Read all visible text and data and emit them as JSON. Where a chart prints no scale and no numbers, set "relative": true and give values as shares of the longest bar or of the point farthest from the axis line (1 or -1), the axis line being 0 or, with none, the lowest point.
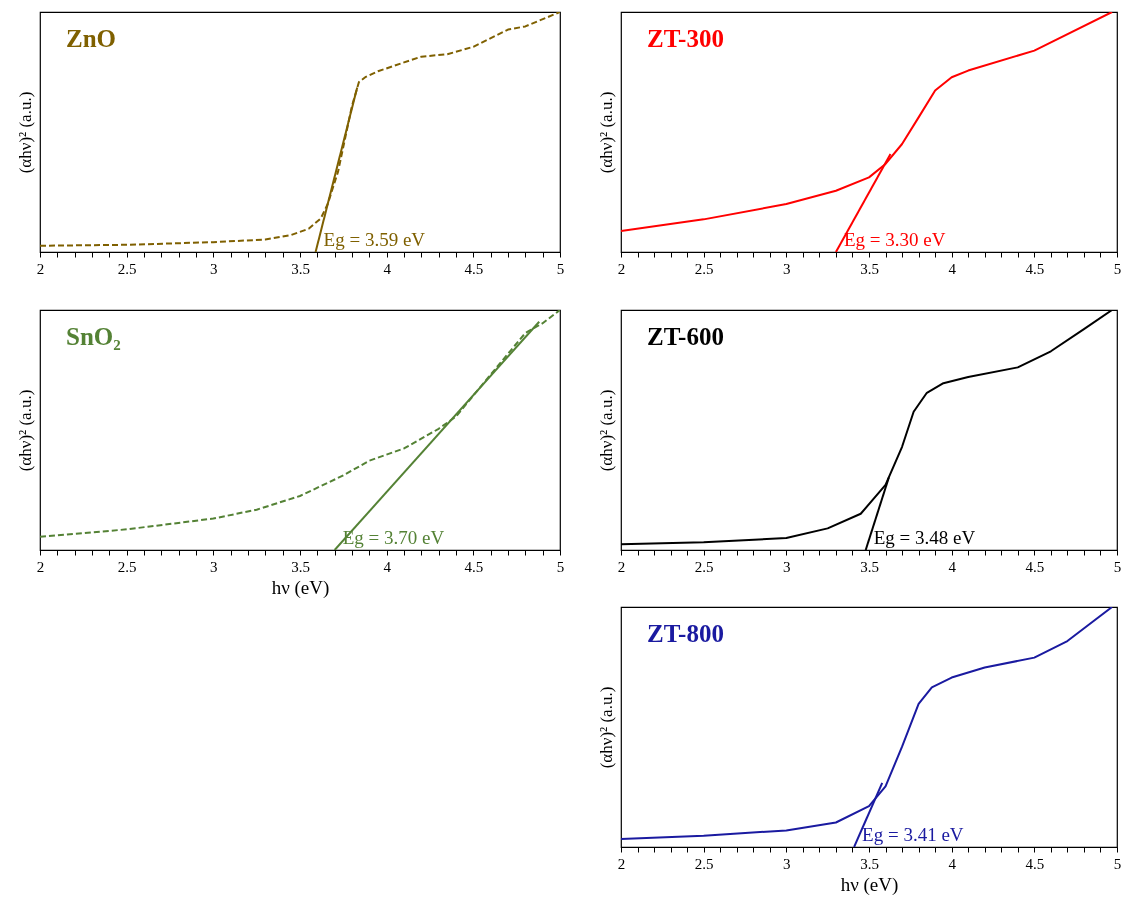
{
  "chart_data": [
    {
      "type": "line",
      "title": "ZnO",
      "ylabel": "(αhν)² (a.u.)",
      "relative": true,
      "xlim": [
        2,
        5
      ],
      "xticks": [
        2,
        {
          "value": 2.1,
          "label": null
        },
        {
          "value": 2.2,
          "label": null
        },
        {
          "value": 2.3,
          "label": null
        },
        {
          "value": 2.4,
          "label": null
        },
        2.5,
        {
          "value": 2.6,
          "label": null
        },
        {
          "value": 2.7,
          "label": null
        },
        {
          "value": 2.8,
          "label": null
        },
        {
          "value": 2.9,
          "label": null
        },
        3,
        {
          "value": 3.1,
          "label": null
        },
        {
          "value": 3.2,
          "label": null
        },
        {
          "value": 3.3,
          "label": null
        },
        {
          "value": 3.4,
          "label": null
        },
        3.5,
        {
          "value": 3.6,
          "label": null
        },
        {
          "value": 3.7,
          "label": null
        },
        {
          "value": 3.8,
          "label": null
        },
        {
          "value": 3.9,
          "label": null
        },
        4,
        {
          "value": 4.1,
          "label": null
        },
        {
          "value": 4.2,
          "label": null
        },
        {
          "value": 4.3,
          "label": null
        },
        {
          "value": 4.4,
          "label": null
        },
        4.5,
        {
          "value": 4.6,
          "label": null
        },
        {
          "value": 4.7,
          "label": null
        },
        {
          "value": 4.8,
          "label": null
        },
        {
          "value": 4.9,
          "label": null
        },
        5
      ],
      "tick_labels": "x",
      "grid": false,
      "series": [
        {
          "color": "#7f6000",
          "line_style": "dashed",
          "x": [
            2,
            2.5,
            3,
            3.3,
            3.45,
            3.55,
            3.62,
            3.66,
            3.72,
            3.76,
            3.8,
            3.84,
            3.88,
            3.95,
            4.1,
            4.2,
            4.35,
            4.5,
            4.7,
            4.8,
            5
          ],
          "values": [
            0.026,
            0.03,
            0.041,
            0.052,
            0.071,
            0.097,
            0.14,
            0.2,
            0.336,
            0.473,
            0.609,
            0.708,
            0.73,
            0.753,
            0.79,
            0.814,
            0.824,
            0.855,
            0.927,
            0.94,
            1
          ]
        },
        {
          "type": "line",
          "color": "#7f6000",
          "line_style": "solid",
          "x": [
            3.59,
            3.83
          ],
          "values": [
            0,
            0.685
          ]
        }
      ],
      "annotations": [
        {
          "text": "Eg = 3.59 eV",
          "x": 3.59,
          "y": 0
        }
      ]
    },
    {
      "type": "line",
      "title": "ZT-300",
      "ylabel": "(αhν)² (a.u.)",
      "relative": true,
      "xlim": [
        2,
        5
      ],
      "xticks": [
        2,
        {
          "value": 2.1,
          "label": null
        },
        {
          "value": 2.2,
          "label": null
        },
        {
          "value": 2.3,
          "label": null
        },
        {
          "value": 2.4,
          "label": null
        },
        2.5,
        {
          "value": 2.6,
          "label": null
        },
        {
          "value": 2.7,
          "label": null
        },
        {
          "value": 2.8,
          "label": null
        },
        {
          "value": 2.9,
          "label": null
        },
        3,
        {
          "value": 3.1,
          "label": null
        },
        {
          "value": 3.2,
          "label": null
        },
        {
          "value": 3.3,
          "label": null
        },
        {
          "value": 3.4,
          "label": null
        },
        3.5,
        {
          "value": 3.6,
          "label": null
        },
        {
          "value": 3.7,
          "label": null
        },
        {
          "value": 3.8,
          "label": null
        },
        {
          "value": 3.9,
          "label": null
        },
        4,
        {
          "value": 4.1,
          "label": null
        },
        {
          "value": 4.2,
          "label": null
        },
        {
          "value": 4.3,
          "label": null
        },
        {
          "value": 4.4,
          "label": null
        },
        4.5,
        {
          "value": 4.6,
          "label": null
        },
        {
          "value": 4.7,
          "label": null
        },
        {
          "value": 4.8,
          "label": null
        },
        {
          "value": 4.9,
          "label": null
        },
        5
      ],
      "tick_labels": "x",
      "grid": false,
      "series": [
        {
          "color": "#ff0000",
          "line_style": "solid",
          "x": [
            2,
            2.5,
            3,
            3.3,
            3.5,
            3.6,
            3.7,
            3.8,
            3.9,
            4,
            4.1,
            4.5,
            4.97
          ],
          "values": [
            0.087,
            0.136,
            0.2,
            0.255,
            0.311,
            0.367,
            0.45,
            0.561,
            0.673,
            0.728,
            0.756,
            0.839,
            1
          ]
        },
        {
          "type": "line",
          "color": "#ff0000",
          "line_style": "solid",
          "x": [
            3.3,
            3.63
          ],
          "values": [
            0,
            0.408
          ]
        }
      ],
      "annotations": [
        {
          "text": "Eg = 3.30 eV",
          "x": 3.3,
          "y": 0
        }
      ]
    },
    {
      "type": "line",
      "title": "SnO₂",
      "xlabel": "hν (eV)",
      "ylabel": "(αhν)² (a.u.)",
      "relative": true,
      "xlim": [
        2,
        5
      ],
      "xticks": [
        2,
        {
          "value": 2.1,
          "label": null
        },
        {
          "value": 2.2,
          "label": null
        },
        {
          "value": 2.3,
          "label": null
        },
        {
          "value": 2.4,
          "label": null
        },
        2.5,
        {
          "value": 2.6,
          "label": null
        },
        {
          "value": 2.7,
          "label": null
        },
        {
          "value": 2.8,
          "label": null
        },
        {
          "value": 2.9,
          "label": null
        },
        3,
        {
          "value": 3.1,
          "label": null
        },
        {
          "value": 3.2,
          "label": null
        },
        {
          "value": 3.3,
          "label": null
        },
        {
          "value": 3.4,
          "label": null
        },
        3.5,
        {
          "value": 3.6,
          "label": null
        },
        {
          "value": 3.7,
          "label": null
        },
        {
          "value": 3.8,
          "label": null
        },
        {
          "value": 3.9,
          "label": null
        },
        4,
        {
          "value": 4.1,
          "label": null
        },
        {
          "value": 4.2,
          "label": null
        },
        {
          "value": 4.3,
          "label": null
        },
        {
          "value": 4.4,
          "label": null
        },
        4.5,
        {
          "value": 4.6,
          "label": null
        },
        {
          "value": 4.7,
          "label": null
        },
        {
          "value": 4.8,
          "label": null
        },
        {
          "value": 4.9,
          "label": null
        },
        5
      ],
      "tick_labels": "x",
      "grid": false,
      "series": [
        {
          "color": "#548235",
          "line_style": "dashed",
          "x": [
            2,
            2.5,
            3,
            3.25,
            3.5,
            3.75,
            3.9,
            4.1,
            4.3,
            4.4,
            4.6,
            4.8,
            4.9,
            5
          ],
          "values": [
            0.055,
            0.086,
            0.131,
            0.168,
            0.225,
            0.311,
            0.372,
            0.423,
            0.505,
            0.556,
            0.731,
            0.904,
            0.945,
            1
          ]
        },
        {
          "type": "line",
          "color": "#548235",
          "line_style": "solid",
          "x": [
            3.7,
            4.88
          ],
          "values": [
            0,
            0.951
          ]
        }
      ],
      "annotations": [
        {
          "text": "Eg = 3.70 eV",
          "x": 3.7,
          "y": 0
        }
      ]
    },
    {
      "type": "line",
      "title": "ZT-600",
      "ylabel": "(αhν)² (a.u.)",
      "relative": true,
      "xlim": [
        2,
        5
      ],
      "xticks": [
        2,
        {
          "value": 2.1,
          "label": null
        },
        {
          "value": 2.2,
          "label": null
        },
        {
          "value": 2.3,
          "label": null
        },
        {
          "value": 2.4,
          "label": null
        },
        2.5,
        {
          "value": 2.6,
          "label": null
        },
        {
          "value": 2.7,
          "label": null
        },
        {
          "value": 2.8,
          "label": null
        },
        {
          "value": 2.9,
          "label": null
        },
        3,
        {
          "value": 3.1,
          "label": null
        },
        {
          "value": 3.2,
          "label": null
        },
        {
          "value": 3.3,
          "label": null
        },
        {
          "value": 3.4,
          "label": null
        },
        3.5,
        {
          "value": 3.6,
          "label": null
        },
        {
          "value": 3.7,
          "label": null
        },
        {
          "value": 3.8,
          "label": null
        },
        {
          "value": 3.9,
          "label": null
        },
        4,
        {
          "value": 4.1,
          "label": null
        },
        {
          "value": 4.2,
          "label": null
        },
        {
          "value": 4.3,
          "label": null
        },
        {
          "value": 4.4,
          "label": null
        },
        4.5,
        {
          "value": 4.6,
          "label": null
        },
        {
          "value": 4.7,
          "label": null
        },
        {
          "value": 4.8,
          "label": null
        },
        {
          "value": 4.9,
          "label": null
        },
        5
      ],
      "tick_labels": "x",
      "grid": false,
      "series": [
        {
          "color": "#000000",
          "line_style": "solid",
          "x": [
            2,
            2.5,
            3,
            3.25,
            3.45,
            3.6,
            3.7,
            3.77,
            3.85,
            3.95,
            4.1,
            4.4,
            4.6,
            4.8,
            4.97
          ],
          "values": [
            0.024,
            0.032,
            0.05,
            0.09,
            0.151,
            0.271,
            0.43,
            0.576,
            0.655,
            0.695,
            0.721,
            0.761,
            0.828,
            0.92,
            1
          ]
        },
        {
          "type": "line",
          "color": "#000000",
          "line_style": "solid",
          "x": [
            3.48,
            3.62
          ],
          "values": [
            0,
            0.302
          ]
        }
      ],
      "annotations": [
        {
          "text": "Eg = 3.48 eV",
          "x": 3.48,
          "y": 0
        }
      ]
    },
    {
      "type": "line",
      "title": "ZT-800",
      "xlabel": "hν (eV)",
      "ylabel": "(αhν)² (a.u.)",
      "relative": true,
      "xlim": [
        2,
        5
      ],
      "xticks": [
        2,
        {
          "value": 2.1,
          "label": null
        },
        {
          "value": 2.2,
          "label": null
        },
        {
          "value": 2.3,
          "label": null
        },
        {
          "value": 2.4,
          "label": null
        },
        2.5,
        {
          "value": 2.6,
          "label": null
        },
        {
          "value": 2.7,
          "label": null
        },
        {
          "value": 2.8,
          "label": null
        },
        {
          "value": 2.9,
          "label": null
        },
        3,
        {
          "value": 3.1,
          "label": null
        },
        {
          "value": 3.2,
          "label": null
        },
        {
          "value": 3.3,
          "label": null
        },
        {
          "value": 3.4,
          "label": null
        },
        3.5,
        {
          "value": 3.6,
          "label": null
        },
        {
          "value": 3.7,
          "label": null
        },
        {
          "value": 3.8,
          "label": null
        },
        {
          "value": 3.9,
          "label": null
        },
        4,
        {
          "value": 4.1,
          "label": null
        },
        {
          "value": 4.2,
          "label": null
        },
        {
          "value": 4.3,
          "label": null
        },
        {
          "value": 4.4,
          "label": null
        },
        4.5,
        {
          "value": 4.6,
          "label": null
        },
        {
          "value": 4.7,
          "label": null
        },
        {
          "value": 4.8,
          "label": null
        },
        {
          "value": 4.9,
          "label": null
        },
        5
      ],
      "tick_labels": "x",
      "grid": false,
      "series": [
        {
          "color": "#1a1aa0",
          "line_style": "solid",
          "x": [
            2,
            2.5,
            3,
            3.3,
            3.5,
            3.6,
            3.7,
            3.8,
            3.88,
            4,
            4.2,
            4.5,
            4.7,
            4.97
          ],
          "values": [
            0.033,
            0.047,
            0.069,
            0.102,
            0.17,
            0.253,
            0.418,
            0.596,
            0.665,
            0.706,
            0.748,
            0.789,
            0.858,
            1
          ]
        },
        {
          "type": "line",
          "color": "#1a1aa0",
          "line_style": "solid",
          "x": [
            3.41,
            3.58
          ],
          "values": [
            0,
            0.267
          ]
        }
      ],
      "annotations": [
        {
          "text": "Eg = 3.41 eV",
          "x": 3.41,
          "y": 0
        }
      ]
    }
  ]
}
